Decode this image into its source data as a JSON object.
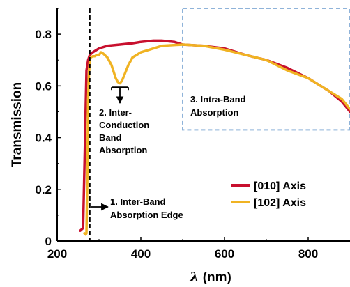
{
  "chart_data": {
    "type": "line",
    "xlabel": "λ (nm)",
    "ylabel": "Transmission",
    "xlim": [
      200,
      900
    ],
    "ylim": [
      0,
      0.9
    ],
    "x_ticks": [
      200,
      400,
      600,
      800
    ],
    "y_ticks": [
      0,
      0.2,
      0.4,
      0.6,
      0.8
    ],
    "x_tick_labels": [
      "200",
      "400",
      "600",
      "800"
    ],
    "y_tick_labels": [
      "0",
      "0.2",
      "0.4",
      "0.6",
      "0.8"
    ],
    "grid": false,
    "legend_position": "bottom-right",
    "series": [
      {
        "name": "[010] Axis",
        "color": "#C8102E",
        "x": [
          255,
          262,
          266,
          270,
          274,
          278,
          285,
          300,
          320,
          350,
          380,
          400,
          430,
          450,
          480,
          500,
          550,
          600,
          650,
          700,
          750,
          800,
          850,
          880,
          900
        ],
        "y": [
          0.04,
          0.05,
          0.35,
          0.66,
          0.7,
          0.72,
          0.73,
          0.745,
          0.755,
          0.76,
          0.765,
          0.77,
          0.775,
          0.775,
          0.77,
          0.76,
          0.755,
          0.745,
          0.72,
          0.7,
          0.67,
          0.63,
          0.58,
          0.54,
          0.5
        ]
      },
      {
        "name": "[102] Axis",
        "color": "#F0B323",
        "x": [
          265,
          268,
          270,
          272,
          274,
          276,
          278,
          280,
          285,
          290,
          295,
          300,
          305,
          310,
          320,
          330,
          340,
          345,
          350,
          355,
          360,
          370,
          380,
          400,
          420,
          450,
          500,
          550,
          600,
          650,
          700,
          750,
          800,
          850,
          880,
          900
        ],
        "y": [
          0.03,
          0.025,
          0.03,
          0.25,
          0.55,
          0.65,
          0.7,
          0.71,
          0.715,
          0.715,
          0.72,
          0.72,
          0.73,
          0.725,
          0.71,
          0.68,
          0.63,
          0.615,
          0.61,
          0.62,
          0.64,
          0.68,
          0.71,
          0.73,
          0.74,
          0.755,
          0.76,
          0.755,
          0.74,
          0.72,
          0.7,
          0.66,
          0.63,
          0.58,
          0.55,
          0.51
        ]
      }
    ],
    "annotations": {
      "edge_line_x": 278,
      "annot1_lines": [
        "1. Inter-Band",
        "Absorption Edge"
      ],
      "annot2_lines": [
        "2. Inter-",
        "Conduction",
        "Band",
        "Absorption"
      ],
      "annot3_lines": [
        "3. Intra-Band",
        "Absorption"
      ],
      "box_color": "#8FB3D9"
    }
  }
}
